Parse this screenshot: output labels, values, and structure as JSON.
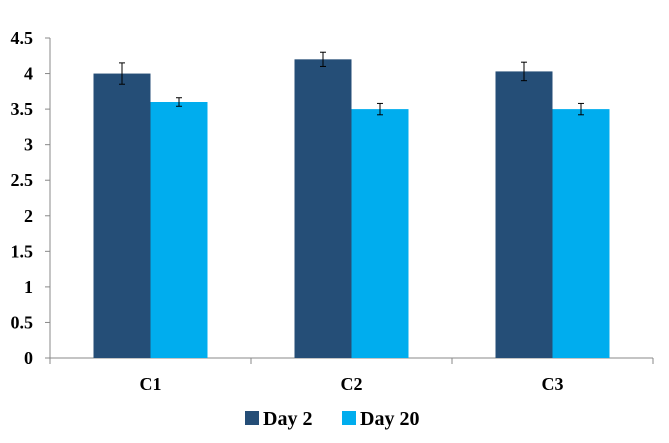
{
  "chart_data": {
    "type": "bar",
    "categories": [
      "C1",
      "C2",
      "C3"
    ],
    "series": [
      {
        "name": "Day 2",
        "values": [
          4.0,
          4.2,
          4.03
        ],
        "errors": [
          0.15,
          0.1,
          0.13
        ],
        "color": "#254e77"
      },
      {
        "name": "Day 20",
        "values": [
          3.6,
          3.5,
          3.5
        ],
        "errors": [
          0.06,
          0.08,
          0.08
        ],
        "color": "#00adee"
      }
    ],
    "ylim": [
      0,
      4.5
    ],
    "yticks": [
      0,
      0.5,
      1,
      1.5,
      2,
      2.5,
      3,
      3.5,
      4,
      4.5
    ],
    "ytick_labels": [
      "0",
      "0.5",
      "1",
      "1.5",
      "2",
      "2.5",
      "3",
      "3.5",
      "4",
      "4.5"
    ],
    "grid": false,
    "legend_position": "bottom"
  }
}
